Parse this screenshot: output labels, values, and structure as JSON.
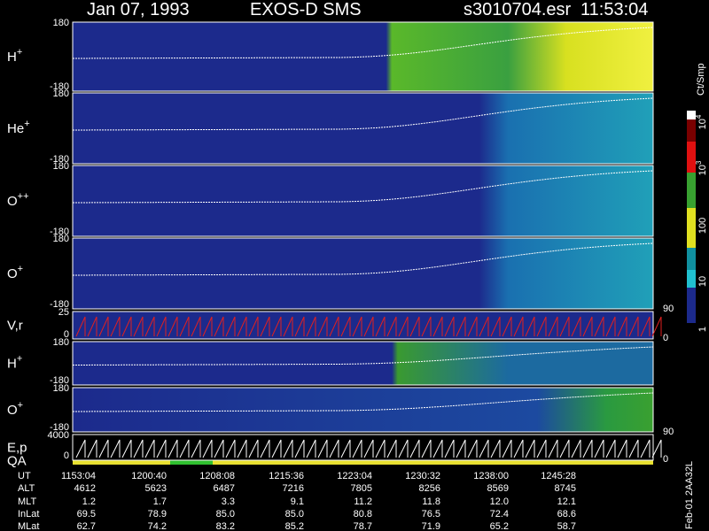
{
  "header": {
    "date": "Jan 07, 1993",
    "instrument": "EXOS-D SMS",
    "file": "s3010704.esr",
    "time": "11:53:04"
  },
  "panels": [
    {
      "label": "H",
      "sup": "+",
      "top": "180",
      "bottom": "-180"
    },
    {
      "label": "He",
      "sup": "+",
      "top": "180",
      "bottom": "-180"
    },
    {
      "label": "O",
      "sup": "++",
      "top": "180",
      "bottom": "-180"
    },
    {
      "label": "O",
      "sup": "+",
      "top": "180",
      "bottom": "-180"
    },
    {
      "label": "V,r",
      "top": "25",
      "bottom": "0",
      "right_top": "90",
      "right_bottom": "0"
    },
    {
      "label": "H",
      "sup": "+",
      "top": "180",
      "bottom": "-180"
    },
    {
      "label": "O",
      "sup": "+",
      "top": "180",
      "bottom": "-180"
    },
    {
      "label": "E,p",
      "label2": "QA",
      "top": "4000",
      "bottom": "0",
      "right_top": "90",
      "right_bottom": "0"
    }
  ],
  "colorbar": {
    "unit": "Ct/Smp",
    "ticks": [
      {
        "base": "10",
        "exp": "4"
      },
      {
        "base": "10",
        "exp": "3"
      },
      {
        "base": "100"
      },
      {
        "base": "10"
      },
      {
        "base": "1"
      }
    ]
  },
  "footer": {
    "rows": [
      {
        "name": "UT",
        "values": [
          "1153:04",
          "1200:40",
          "1208:08",
          "1215:36",
          "1223:04",
          "1230:32",
          "1238:00",
          "1245:28"
        ]
      },
      {
        "name": "ALT",
        "values": [
          "4612",
          "5623",
          "6487",
          "7216",
          "7805",
          "8256",
          "8569",
          "8745"
        ]
      },
      {
        "name": "MLT",
        "values": [
          "1.2",
          "1.7",
          "3.3",
          "9.1",
          "11.2",
          "11.8",
          "12.0",
          "12.1"
        ]
      },
      {
        "name": "InLat",
        "values": [
          "69.5",
          "78.9",
          "85.0",
          "85.0",
          "80.8",
          "76.5",
          "72.4",
          "68.6"
        ]
      },
      {
        "name": "MLat",
        "values": [
          "62.7",
          "74.2",
          "83.2",
          "85.2",
          "78.7",
          "71.9",
          "65.2",
          "58.7"
        ]
      }
    ],
    "stamp": "Feb-01 2AA32L"
  }
}
